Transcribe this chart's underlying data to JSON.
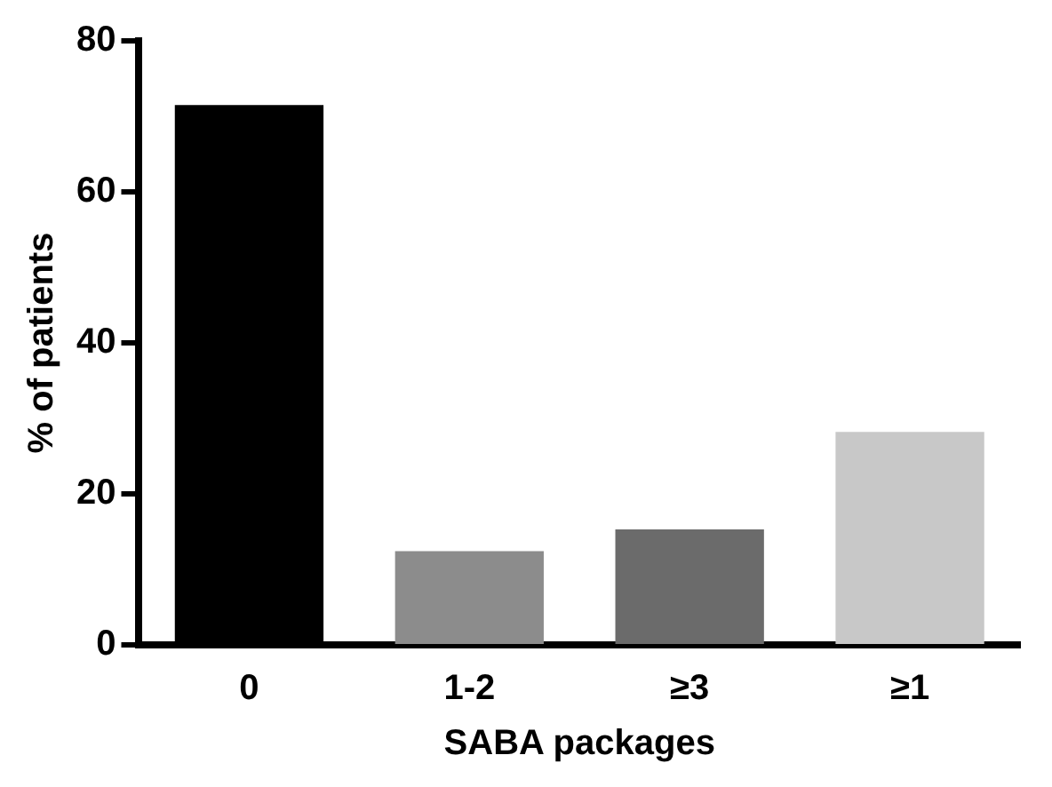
{
  "chart_data": {
    "type": "bar",
    "xlabel": "SABA packages",
    "ylabel": "% of patients",
    "categories": [
      "0",
      "1-2",
      "≥3",
      "≥1"
    ],
    "values": [
      71.5,
      12.4,
      15.3,
      28.2
    ],
    "colors": [
      "#000000",
      "#8c8c8c",
      "#6b6b6b",
      "#c8c8c8"
    ],
    "ylim": [
      0,
      80
    ],
    "yticks": [
      0,
      20,
      40,
      60,
      80
    ],
    "grid": false,
    "legend": false
  }
}
